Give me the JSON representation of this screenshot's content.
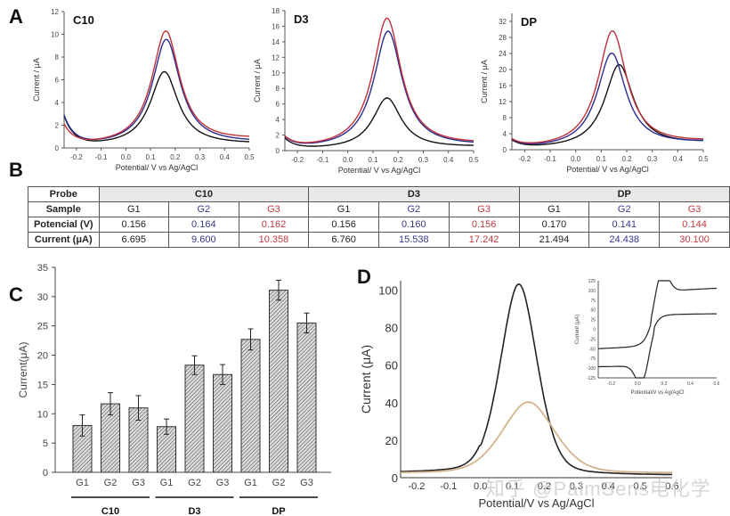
{
  "panels": {
    "A": "A",
    "B": "B",
    "C": "C",
    "D": "D"
  },
  "watermark": "知乎 @PalmSens电化学",
  "colors": {
    "G1": "#111111",
    "G2": "#2b2b8f",
    "G3": "#c0303a",
    "D_main": "#222222",
    "D_second": "#d2b48c"
  },
  "chart_data": [
    {
      "id": "A-C10",
      "type": "line",
      "title": "C10",
      "xlabel": "Potential/ V vs Ag/AgCl",
      "ylabel": "Current / μA",
      "xlim": [
        -0.25,
        0.5
      ],
      "ylim": [
        0,
        12
      ],
      "xticks": [
        "-0.2",
        "-0.1",
        "0.0",
        "0.1",
        "0.2",
        "0.3",
        "0.4",
        "0.5"
      ],
      "yticks": [
        "0",
        "2",
        "4",
        "6",
        "8",
        "10",
        "12"
      ],
      "series": [
        {
          "name": "G1",
          "peak_x": 0.156,
          "peak_y": 6.695,
          "start_y": 2.5,
          "end_y": 0.5
        },
        {
          "name": "G2",
          "peak_x": 0.164,
          "peak_y": 9.6,
          "start_y": 2.5,
          "end_y": 0.8
        },
        {
          "name": "G3",
          "peak_x": 0.162,
          "peak_y": 10.358,
          "start_y": 1.7,
          "end_y": 1.6
        }
      ]
    },
    {
      "id": "A-D3",
      "type": "line",
      "title": "D3",
      "xlabel": "Potential/ V vs Ag/AgCl",
      "ylabel": "Current / μA",
      "xlim": [
        -0.25,
        0.5
      ],
      "ylim": [
        0,
        18
      ],
      "xticks": [
        "-0.2",
        "-0.1",
        "0.0",
        "0.1",
        "0.2",
        "0.3",
        "0.4",
        "0.5"
      ],
      "yticks": [
        "0",
        "2",
        "4",
        "6",
        "8",
        "10",
        "12",
        "14",
        "16",
        "18"
      ],
      "series": [
        {
          "name": "G1",
          "peak_x": 0.156,
          "peak_y": 6.76,
          "start_y": 1.3,
          "end_y": 0.9
        },
        {
          "name": "G2",
          "peak_x": 0.16,
          "peak_y": 15.538,
          "start_y": 1.3,
          "end_y": 1.2
        },
        {
          "name": "G3",
          "peak_x": 0.156,
          "peak_y": 17.242,
          "start_y": 1.3,
          "end_y": 1.6
        }
      ]
    },
    {
      "id": "A-DP",
      "type": "line",
      "title": "DP",
      "xlabel": "Potential/ V vs Ag/AgCl",
      "ylabel": "Current / μA",
      "xlim": [
        -0.25,
        0.5
      ],
      "ylim": [
        0,
        34
      ],
      "xticks": [
        "-0.2",
        "-0.1",
        "0.0",
        "0.1",
        "0.2",
        "0.3",
        "0.4",
        "0.5"
      ],
      "yticks": [
        "0",
        "4",
        "8",
        "12",
        "16",
        "20",
        "24",
        "28",
        "32"
      ],
      "series": [
        {
          "name": "G1",
          "peak_x": 0.17,
          "peak_y": 21.494,
          "start_y": 1.8,
          "end_y": 4.3
        },
        {
          "name": "G2",
          "peak_x": 0.141,
          "peak_y": 24.438,
          "start_y": 1.8,
          "end_y": 4.5
        },
        {
          "name": "G3",
          "peak_x": 0.144,
          "peak_y": 30.1,
          "start_y": 1.8,
          "end_y": 5.0
        }
      ]
    },
    {
      "id": "B-table",
      "type": "table",
      "row_headers": [
        "Probe",
        "Sample",
        "Potencial (V)",
        "Current (μA)"
      ],
      "probes": [
        "C10",
        "D3",
        "DP"
      ],
      "samples": [
        "G1",
        "G2",
        "G3",
        "G1",
        "G2",
        "G3",
        "G1",
        "G2",
        "G3"
      ],
      "potential": [
        "0.156",
        "0.164",
        "0.162",
        "0.156",
        "0.160",
        "0.156",
        "0.170",
        "0.141",
        "0.144"
      ],
      "current": [
        "6.695",
        "9.600",
        "10.358",
        "6.760",
        "15.538",
        "17.242",
        "21.494",
        "24.438",
        "30.100"
      ]
    },
    {
      "id": "C-bar",
      "type": "bar",
      "ylabel": "Current(μA)",
      "ylim": [
        0,
        35
      ],
      "yticks": [
        "0",
        "5",
        "10",
        "15",
        "20",
        "25",
        "30",
        "35"
      ],
      "categories": [
        "G1",
        "G2",
        "G3",
        "G1",
        "G2",
        "G3",
        "G1",
        "G2",
        "G3"
      ],
      "groups": [
        "C10",
        "D3",
        "DP"
      ],
      "values": [
        8.0,
        11.7,
        11.0,
        7.8,
        18.3,
        16.7,
        22.7,
        31.1,
        25.5
      ],
      "errors": [
        1.8,
        1.9,
        2.1,
        1.3,
        1.6,
        1.7,
        1.8,
        1.7,
        1.7
      ]
    },
    {
      "id": "D-main",
      "type": "line",
      "xlabel": "Potential/V vs Ag/AgCl",
      "ylabel": "Current (μA)",
      "xlim": [
        -0.25,
        0.6
      ],
      "ylim": [
        0,
        105
      ],
      "xticks": [
        "-0.2",
        "-0.1",
        "0.0",
        "0.1",
        "0.2",
        "0.3",
        "0.4",
        "0.5",
        "0.6"
      ],
      "yticks": [
        "0",
        "20",
        "40",
        "60",
        "80",
        "100"
      ],
      "series": [
        {
          "name": "black",
          "peak_x": 0.12,
          "peak_y": 102,
          "start_y": 3,
          "end_y": 1.5
        },
        {
          "name": "tan",
          "peak_x": 0.15,
          "peak_y": 38,
          "start_y": 2.5,
          "end_y": 2.5
        }
      ]
    },
    {
      "id": "D-inset",
      "type": "line",
      "xlabel": "Potential/V vs Ag/AgCl",
      "ylabel": "Current (μA)",
      "xlim": [
        -0.3,
        0.6
      ],
      "ylim": [
        -125,
        125
      ],
      "xticks": [
        "-0.2",
        "0.0",
        "0.2",
        "0.4",
        "0.6"
      ],
      "yticks": [
        "125",
        "100",
        "75",
        "50",
        "25",
        "0",
        "-25",
        "-50",
        "-75",
        "-100",
        "-125"
      ],
      "cv": {
        "anodic_peak": [
          0.18,
          123
        ],
        "cathodic_peak": [
          0.04,
          -125
        ],
        "start": [
          -0.3,
          -47
        ],
        "vertex": [
          0.6,
          40
        ]
      }
    }
  ]
}
